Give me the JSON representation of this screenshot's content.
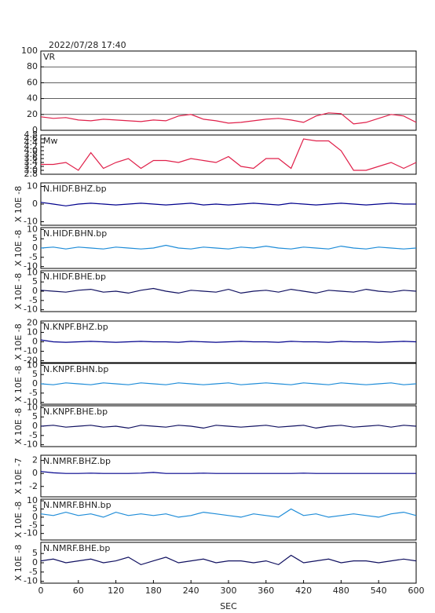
{
  "chart_data": [
    {
      "type": "line",
      "title": "2022/07/28 17:40",
      "xlim": [
        0,
        600
      ],
      "ylim": [
        0,
        100
      ],
      "yticks": [
        0,
        20,
        40,
        60,
        80,
        100
      ],
      "grid": true,
      "x": [
        0,
        20,
        40,
        60,
        80,
        100,
        120,
        140,
        160,
        180,
        200,
        220,
        240,
        260,
        280,
        300,
        320,
        340,
        360,
        380,
        400,
        420,
        440,
        460,
        480,
        500,
        520,
        540,
        560,
        580,
        600
      ],
      "series": [
        {
          "name": "VR",
          "color": "#e0204a",
          "values": [
            17,
            15,
            16,
            13,
            12,
            14,
            13,
            12,
            11,
            13,
            12,
            18,
            20,
            14,
            12,
            9,
            10,
            12,
            14,
            15,
            13,
            10,
            18,
            22,
            21,
            8,
            10,
            15,
            20,
            18,
            10
          ]
        }
      ]
    },
    {
      "type": "line",
      "xlim": [
        0,
        600
      ],
      "ylim": [
        2.8,
        4.8
      ],
      "yticks": [
        2.8,
        {
          "value": 3,
          "label": "3.0"
        },
        3.2,
        3.4,
        3.6,
        3.8,
        {
          "value": 4,
          "label": "4.0"
        },
        4.2,
        4.4,
        4.6,
        4.8
      ],
      "x": [
        0,
        20,
        40,
        60,
        80,
        100,
        120,
        140,
        160,
        180,
        200,
        220,
        240,
        260,
        280,
        300,
        320,
        340,
        360,
        380,
        400,
        420,
        440,
        460,
        480,
        500,
        520,
        540,
        560,
        580,
        600
      ],
      "series": [
        {
          "name": "Mw",
          "color": "#e0204a",
          "values": [
            3.3,
            3.3,
            3.4,
            3.0,
            3.9,
            3.1,
            3.4,
            3.6,
            3.1,
            3.5,
            3.5,
            3.4,
            3.6,
            3.5,
            3.4,
            3.7,
            3.2,
            3.1,
            3.6,
            3.6,
            3.1,
            4.6,
            4.5,
            4.5,
            4.0,
            3.0,
            3.0,
            3.2,
            3.4,
            3.1,
            3.4
          ]
        }
      ]
    },
    {
      "type": "line",
      "xlim": [
        0,
        600
      ],
      "ylim": [
        -12,
        12
      ],
      "yticks": [
        -10,
        0,
        10
      ],
      "ylabel": "X 10E -8",
      "x": [
        0,
        20,
        40,
        60,
        80,
        100,
        120,
        140,
        160,
        180,
        200,
        220,
        240,
        260,
        280,
        300,
        320,
        340,
        360,
        380,
        400,
        420,
        440,
        460,
        480,
        500,
        520,
        540,
        560,
        580,
        600
      ],
      "series": [
        {
          "name": "N.HIDF.BHZ.bp",
          "color": "#00008c",
          "values": [
            1,
            0,
            -1,
            0,
            0.5,
            0,
            -0.5,
            0,
            0.5,
            0,
            -0.5,
            0,
            0.5,
            -0.5,
            0,
            -0.5,
            0,
            0.5,
            0,
            -0.5,
            0.5,
            0,
            -0.5,
            0,
            0.5,
            0,
            -0.5,
            0,
            0.5,
            0,
            0
          ]
        }
      ]
    },
    {
      "type": "line",
      "xlim": [
        0,
        600
      ],
      "ylim": [
        -11,
        11
      ],
      "yticks": [
        -10,
        -5,
        0,
        5,
        10
      ],
      "ylabel": "X 10E -8",
      "x": [
        0,
        20,
        40,
        60,
        80,
        100,
        120,
        140,
        160,
        180,
        200,
        220,
        240,
        260,
        280,
        300,
        320,
        340,
        360,
        380,
        400,
        420,
        440,
        460,
        480,
        500,
        520,
        540,
        560,
        580,
        600
      ],
      "series": [
        {
          "name": "N.HIDF.BHN.bp",
          "color": "#1e8cd8",
          "values": [
            0,
            0.5,
            -0.5,
            0.5,
            0,
            -0.5,
            0.5,
            0,
            -0.5,
            0,
            1.5,
            0,
            -0.5,
            0.5,
            0,
            -0.5,
            0.5,
            0,
            1,
            0,
            -0.5,
            0.5,
            0,
            -0.5,
            1,
            0,
            -0.5,
            0.5,
            0,
            -0.5,
            0
          ]
        }
      ]
    },
    {
      "type": "line",
      "xlim": [
        0,
        600
      ],
      "ylim": [
        -11,
        11
      ],
      "yticks": [
        -10,
        -5,
        0,
        5,
        10
      ],
      "ylabel": "X 10E -8",
      "x": [
        0,
        20,
        40,
        60,
        80,
        100,
        120,
        140,
        160,
        180,
        200,
        220,
        240,
        260,
        280,
        300,
        320,
        340,
        360,
        380,
        400,
        420,
        440,
        460,
        480,
        500,
        520,
        540,
        560,
        580,
        600
      ],
      "series": [
        {
          "name": "N.HIDF.BHE.bp",
          "color": "#101060",
          "values": [
            0.5,
            0,
            -0.5,
            0.5,
            1,
            -0.5,
            0,
            -1,
            0.5,
            1.5,
            0,
            -1,
            0.5,
            0,
            -0.5,
            1,
            -1,
            0,
            0.5,
            -0.5,
            1,
            0,
            -1,
            0.5,
            0,
            -0.5,
            1,
            0,
            -0.5,
            0.5,
            0
          ]
        }
      ]
    },
    {
      "type": "line",
      "xlim": [
        0,
        600
      ],
      "ylim": [
        -22,
        22
      ],
      "yticks": [
        -20,
        -10,
        0,
        10,
        20
      ],
      "ylabel": "X 10E -8",
      "x": [
        0,
        20,
        40,
        60,
        80,
        100,
        120,
        140,
        160,
        180,
        200,
        220,
        240,
        260,
        280,
        300,
        320,
        340,
        360,
        380,
        400,
        420,
        440,
        460,
        480,
        500,
        520,
        540,
        560,
        580,
        600
      ],
      "series": [
        {
          "name": "N.KNPF.BHZ.bp",
          "color": "#00008c",
          "values": [
            2,
            0,
            -0.5,
            0,
            0.5,
            0,
            -0.5,
            0,
            0.5,
            0,
            0,
            -0.5,
            0.5,
            0,
            -0.5,
            0,
            0.5,
            0,
            0,
            -0.5,
            0.5,
            0,
            0,
            -0.5,
            0.5,
            0,
            0,
            -0.5,
            0,
            0.5,
            0
          ]
        }
      ]
    },
    {
      "type": "line",
      "xlim": [
        0,
        600
      ],
      "ylim": [
        -11,
        11
      ],
      "yticks": [
        -10,
        -5,
        0,
        5,
        10
      ],
      "ylabel": "X 10E -8",
      "x": [
        0,
        20,
        40,
        60,
        80,
        100,
        120,
        140,
        160,
        180,
        200,
        220,
        240,
        260,
        280,
        300,
        320,
        340,
        360,
        380,
        400,
        420,
        440,
        460,
        480,
        500,
        520,
        540,
        560,
        580,
        600
      ],
      "series": [
        {
          "name": "N.KNPF.BHN.bp",
          "color": "#1e8cd8",
          "values": [
            0,
            -0.5,
            0.5,
            0,
            -0.5,
            0.5,
            0,
            -0.5,
            0.5,
            0,
            -0.5,
            0.5,
            0,
            -0.5,
            0,
            0.5,
            -0.5,
            0,
            0.5,
            0,
            -0.5,
            0.5,
            0,
            -0.5,
            0.5,
            0,
            -0.5,
            0,
            0.5,
            -0.5,
            0
          ]
        }
      ]
    },
    {
      "type": "line",
      "xlim": [
        0,
        600
      ],
      "ylim": [
        -11,
        11
      ],
      "yticks": [
        -10,
        -5,
        0,
        5,
        10
      ],
      "ylabel": "X 10E -8",
      "x": [
        0,
        20,
        40,
        60,
        80,
        100,
        120,
        140,
        160,
        180,
        200,
        220,
        240,
        260,
        280,
        300,
        320,
        340,
        360,
        380,
        400,
        420,
        440,
        460,
        480,
        500,
        520,
        540,
        560,
        580,
        600
      ],
      "series": [
        {
          "name": "N.KNPF.BHE.bp",
          "color": "#101060",
          "values": [
            0,
            0.5,
            -0.5,
            0,
            0.5,
            -0.5,
            0,
            -1,
            0.5,
            0,
            -0.5,
            0.5,
            0,
            -1,
            0.5,
            0,
            -0.5,
            0,
            0.5,
            -0.5,
            0,
            0.5,
            -1,
            0,
            0.5,
            -0.5,
            0,
            0.5,
            -0.5,
            0.5,
            0
          ]
        }
      ]
    },
    {
      "type": "line",
      "xlim": [
        0,
        600
      ],
      "ylim": [
        -3.6,
        2.8
      ],
      "yticks": [
        -2,
        0,
        2
      ],
      "ylabel": "X 10E -7",
      "x": [
        0,
        20,
        40,
        60,
        80,
        100,
        120,
        140,
        160,
        180,
        200,
        220,
        240,
        260,
        280,
        300,
        320,
        340,
        360,
        380,
        400,
        420,
        440,
        460,
        480,
        500,
        520,
        540,
        560,
        580,
        600
      ],
      "series": [
        {
          "name": "N.NMRF.BHZ.bp",
          "color": "#00008c",
          "values": [
            0.3,
            0.1,
            0,
            0,
            0.05,
            0,
            0,
            0,
            0.05,
            0.15,
            0,
            0,
            0,
            0.05,
            0,
            0,
            0,
            0,
            0,
            0,
            0,
            0.05,
            0,
            0,
            0,
            0,
            0,
            0,
            0,
            0,
            0
          ]
        }
      ]
    },
    {
      "type": "line",
      "xlim": [
        0,
        600
      ],
      "ylim": [
        -14,
        11
      ],
      "yticks": [
        -10,
        -5,
        0,
        5,
        10
      ],
      "ylabel": "X 10E -8",
      "x": [
        0,
        20,
        40,
        60,
        80,
        100,
        120,
        140,
        160,
        180,
        200,
        220,
        240,
        260,
        280,
        300,
        320,
        340,
        360,
        380,
        400,
        420,
        440,
        460,
        480,
        500,
        520,
        540,
        560,
        580,
        600
      ],
      "series": [
        {
          "name": "N.NMRF.BHN.bp",
          "color": "#1e8cd8",
          "values": [
            2,
            1,
            3,
            1,
            2,
            0,
            3,
            1,
            2,
            1,
            2,
            0,
            1,
            3,
            2,
            1,
            0,
            2,
            1,
            0,
            5,
            1,
            2,
            0,
            1,
            2,
            1,
            0,
            2,
            3,
            1
          ]
        }
      ]
    },
    {
      "type": "line",
      "xlim": [
        0,
        600
      ],
      "ylim": [
        -11,
        11
      ],
      "yticks": [
        -10,
        -5,
        0,
        5
      ],
      "ylabel": "X 10E -8",
      "xticks": [
        0,
        60,
        120,
        180,
        240,
        300,
        360,
        420,
        480,
        540,
        600
      ],
      "xlabel": "SEC",
      "x": [
        0,
        20,
        40,
        60,
        80,
        100,
        120,
        140,
        160,
        180,
        200,
        220,
        240,
        260,
        280,
        300,
        320,
        340,
        360,
        380,
        400,
        420,
        440,
        460,
        480,
        500,
        520,
        540,
        560,
        580,
        600
      ],
      "series": [
        {
          "name": "N.NMRF.BHE.bp",
          "color": "#101060",
          "values": [
            1,
            2,
            0,
            1,
            2,
            0,
            1,
            3,
            -1,
            1,
            3,
            0,
            1,
            2,
            0,
            1,
            1,
            0,
            1,
            -1,
            4,
            0,
            1,
            2,
            0,
            1,
            1,
            0,
            1,
            2,
            1
          ]
        }
      ]
    }
  ]
}
